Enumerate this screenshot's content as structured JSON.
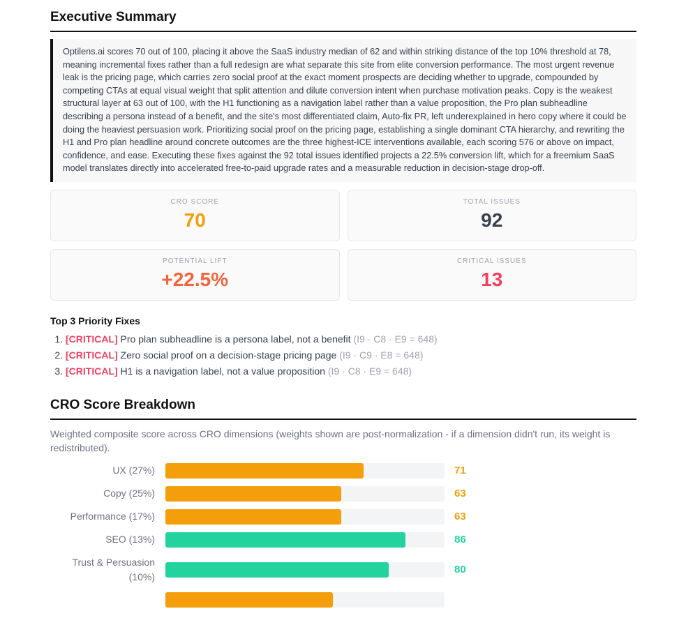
{
  "executive": {
    "title": "Executive Summary",
    "summary": "Optilens.ai scores 70 out of 100, placing it above the SaaS industry median of 62 and within striking distance of the top 10% threshold at 78, meaning incremental fixes rather than a full redesign are what separate this site from elite conversion performance. The most urgent revenue leak is the pricing page, which carries zero social proof at the exact moment prospects are deciding whether to upgrade, compounded by competing CTAs at equal visual weight that split attention and dilute conversion intent when purchase motivation peaks. Copy is the weakest structural layer at 63 out of 100, with the H1 functioning as a navigation label rather than a value proposition, the Pro plan subheadline describing a persona instead of a benefit, and the site's most differentiated claim, Auto-fix PR, left underexplained in hero copy where it could be doing the heaviest persuasion work. Prioritizing social proof on the pricing page, establishing a single dominant CTA hierarchy, and rewriting the H1 and Pro plan headline around concrete outcomes are the three highest-ICE interventions available, each scoring 576 or above on impact, confidence, and ease. Executing these fixes against the 92 total issues identified projects a 22.5% conversion lift, which for a freemium SaaS model translates directly into accelerated free-to-paid upgrade rates and a measurable reduction in decision-stage drop-off."
  },
  "cards": [
    {
      "label": "CRO SCORE",
      "value": "70",
      "color": "#f59e0b"
    },
    {
      "label": "TOTAL ISSUES",
      "value": "92",
      "color": "#374151"
    },
    {
      "label": "POTENTIAL LIFT",
      "value": "+22.5%",
      "color": "#f2643c"
    },
    {
      "label": "CRITICAL ISSUES",
      "value": "13",
      "color": "#f43f5e"
    }
  ],
  "priority": {
    "title": "Top 3 Priority Fixes",
    "items": [
      {
        "tag": "[CRITICAL]",
        "text": "Pro plan subheadline is a persona label, not a benefit",
        "ice": "(I9 · C8 · E9 = 648)"
      },
      {
        "tag": "[CRITICAL]",
        "text": "Zero social proof on a decision-stage pricing page",
        "ice": "(I9 · C9 · E8 = 648)"
      },
      {
        "tag": "[CRITICAL]",
        "text": "H1 is a navigation label, not a value proposition",
        "ice": "(I9 · C8 · E9 = 648)"
      }
    ]
  },
  "breakdown": {
    "title": "CRO Score Breakdown",
    "description": "Weighted composite score across CRO dimensions (weights shown are post-normalization - if a dimension didn't run, its weight is redistributed).",
    "colors": {
      "mid": "#f59e0b",
      "high": "#22d3a0"
    },
    "rows": [
      {
        "label": "UX (27%)",
        "value": 71,
        "display": "71"
      },
      {
        "label": "Copy (25%)",
        "value": 63,
        "display": "63"
      },
      {
        "label": "Performance (17%)",
        "value": 63,
        "display": "63"
      },
      {
        "label": "SEO (13%)",
        "value": 86,
        "display": "86"
      },
      {
        "label": "Trust & Persuasion (10%)",
        "value": 80,
        "display": "80"
      },
      {
        "label": "",
        "value": 60,
        "display": ""
      }
    ]
  }
}
